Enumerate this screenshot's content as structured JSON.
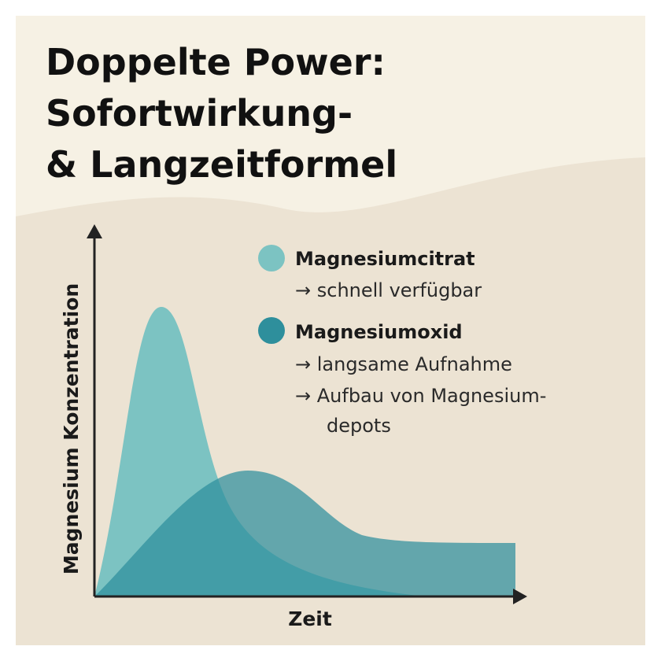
{
  "title": {
    "lines": [
      "Doppelte Power:",
      "Sofortwirkung-",
      "& Langzeitformel"
    ]
  },
  "legend": [
    {
      "label": "Magnesiumcitrat",
      "notes": [
        "→ schnell verfügbar"
      ]
    },
    {
      "label": "Magnesiumoxid",
      "notes": [
        "→ langsame Aufnahme",
        "→ Aufbau von Magnesium-",
        "depots"
      ]
    }
  ],
  "axes": {
    "y_label": "Magnesium Konzentration",
    "x_label": "Zeit"
  }
}
